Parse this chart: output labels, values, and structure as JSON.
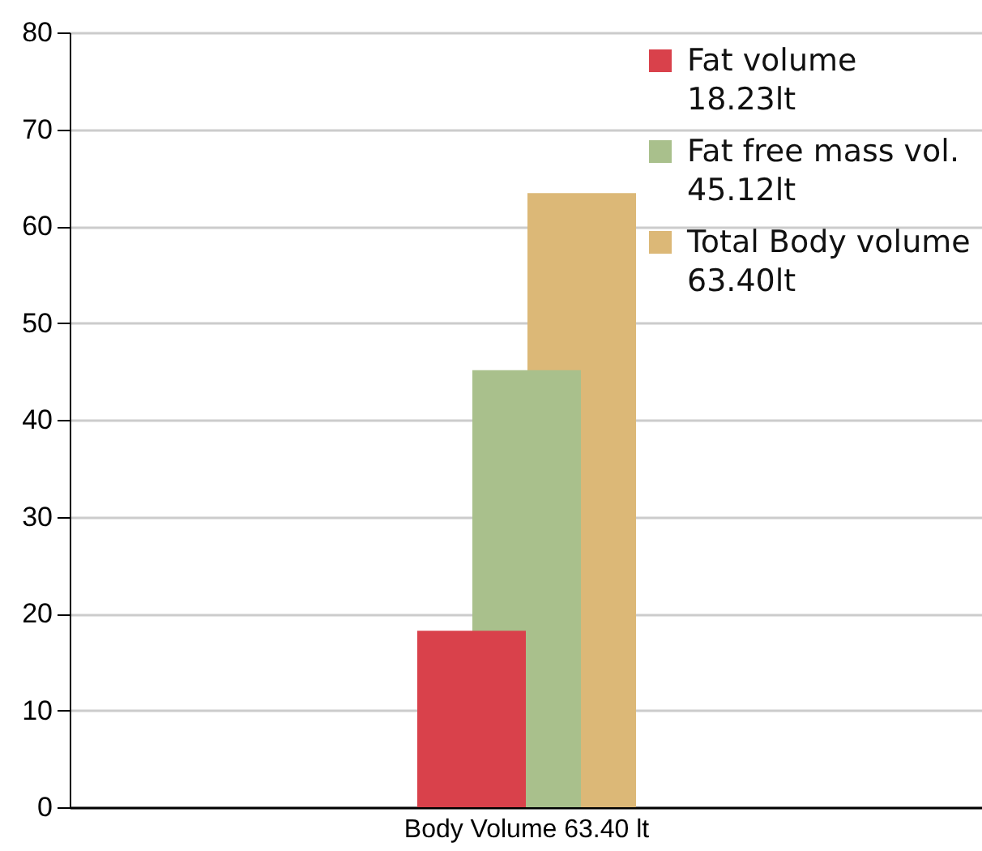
{
  "chart_data": {
    "type": "bar",
    "categories": [
      "Body Volume 63.40 lt"
    ],
    "series": [
      {
        "name": "Fat volume 18.23lt",
        "color": "#d9414b",
        "values": [
          18.23
        ]
      },
      {
        "name": "Fat free mass vol. 45.12lt",
        "color": "#a9c08c",
        "values": [
          45.12
        ]
      },
      {
        "name": "Total Body volume 63.40lt",
        "color": "#dcb877",
        "values": [
          63.4
        ]
      }
    ],
    "ylim": [
      0,
      80
    ],
    "yticks": [
      0,
      10,
      20,
      30,
      40,
      50,
      60,
      70,
      80
    ],
    "grid": "y",
    "legend": "top right"
  }
}
